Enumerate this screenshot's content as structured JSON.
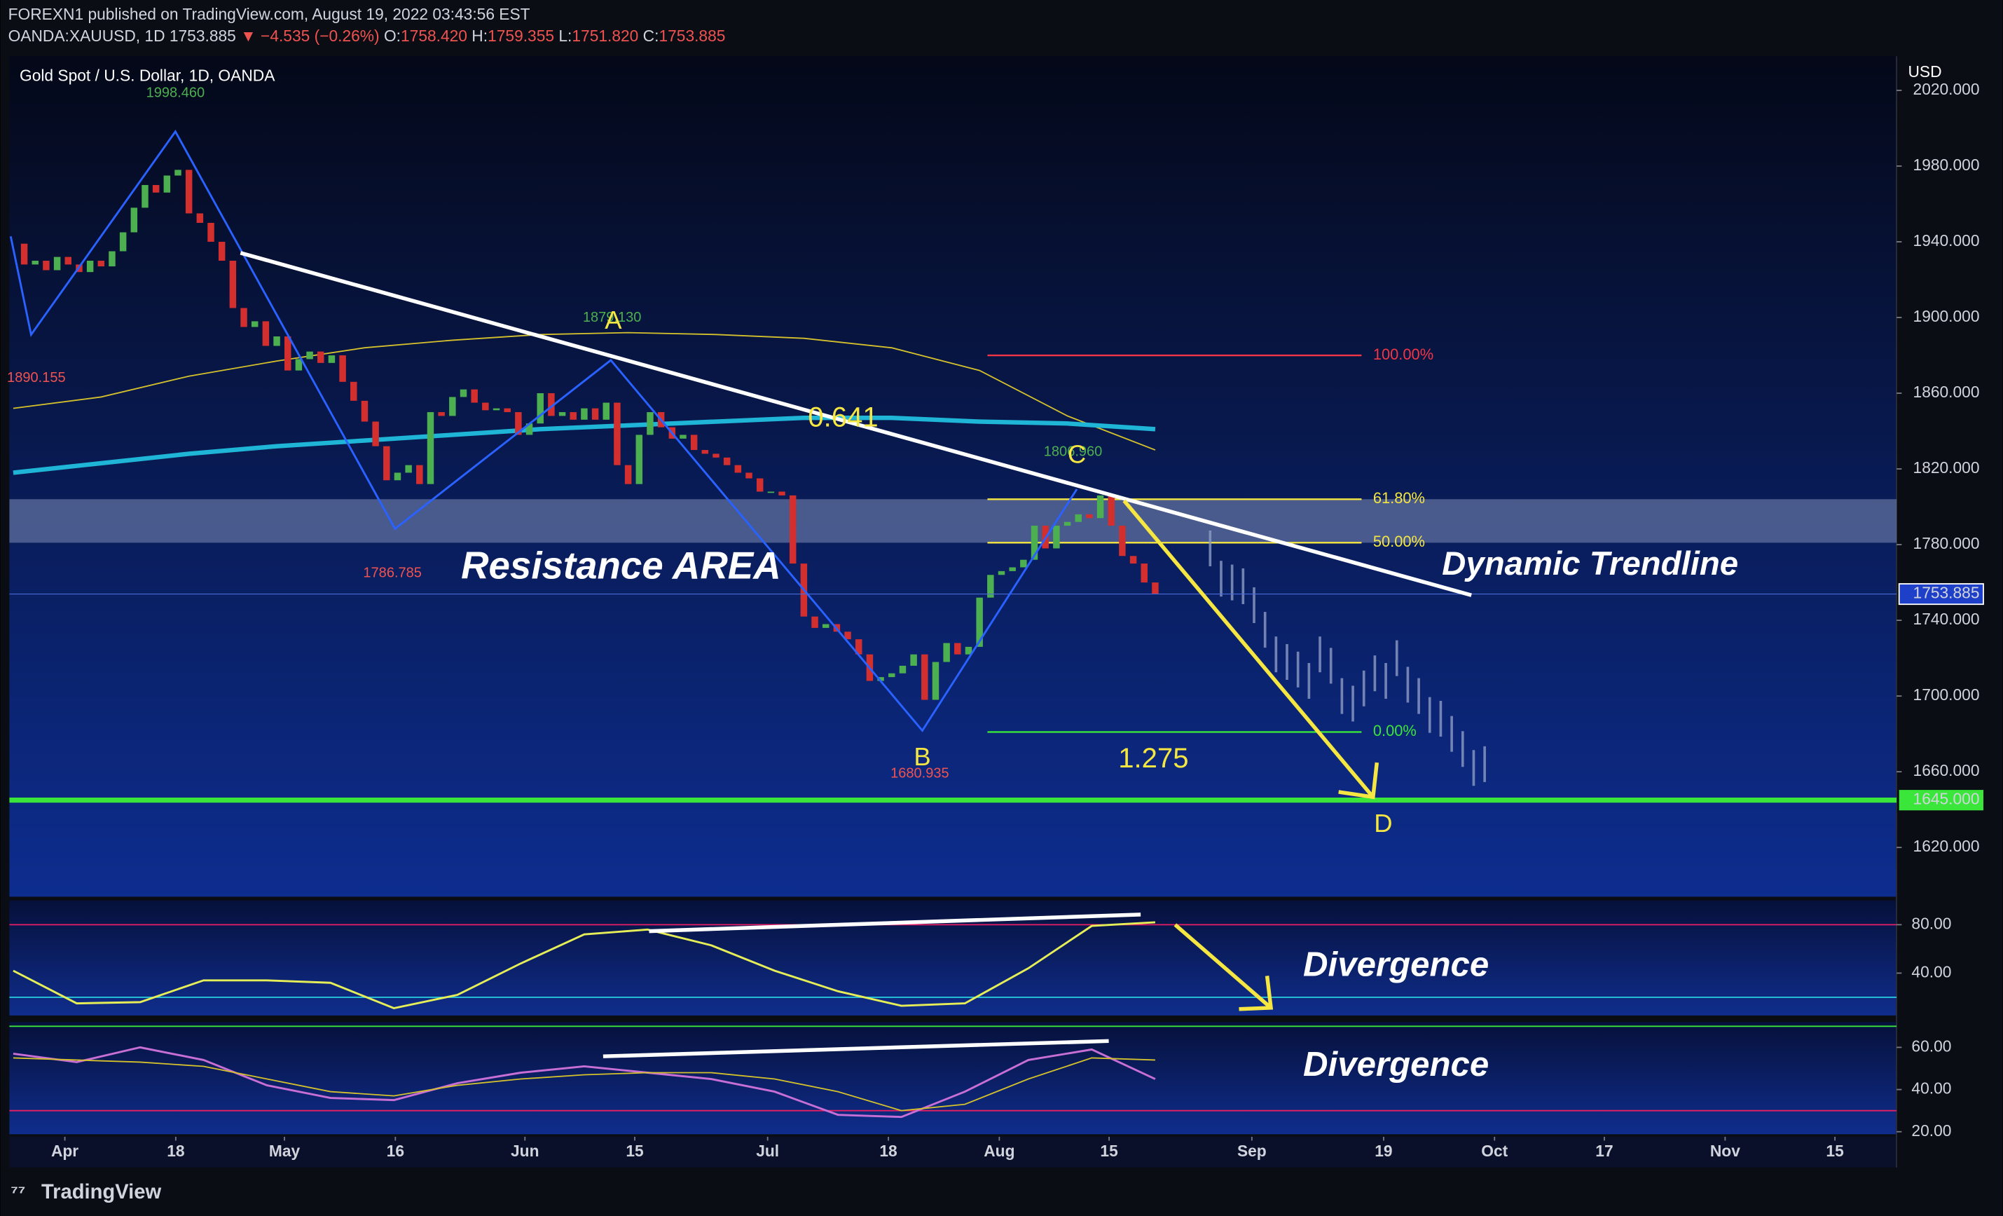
{
  "header": {
    "publisher": "FOREXN1 published on TradingView.com, August 19, 2022 03:43:56 EST",
    "symbol": "OANDA:XAUUSD, 1D",
    "last": "1753.885",
    "arrow": "▼",
    "change": "−4.535 (−0.26%)",
    "open_label": "O:",
    "open": "1758.420",
    "high_label": "H:",
    "high": "1759.355",
    "low_label": "L:",
    "low": "1751.820",
    "close_label": "C:",
    "close": "1753.885"
  },
  "footer": {
    "brand": "TradingView"
  },
  "annotations": {
    "resistance": "Resistance  AREA",
    "trendline": "Dynamic Trendline",
    "divergence_1": "Divergence",
    "divergence_2": "Divergence",
    "point_a": "A",
    "point_b": "B",
    "point_c": "C",
    "point_d": "D",
    "price_high": "1998.460",
    "price_left": "1890.155",
    "price_a": "1879.130",
    "price_low1": "1786.785",
    "price_b": "1680.935",
    "price_c": "1806.960",
    "ratio_1": "0.641",
    "ratio_2": "1.275"
  },
  "chart_data": {
    "type": "candlestick",
    "title": "Gold Spot / U.S. Dollar, 1D, OANDA",
    "currency": "USD",
    "up_color": "#4caf50",
    "down_color": "#d32f2f",
    "values": [
      1939,
      1928,
      1930,
      1925,
      1932,
      1928,
      1924,
      1930,
      1927,
      1935,
      1945,
      1958,
      1970,
      1966,
      1975,
      1978,
      1955,
      1950,
      1940,
      1930,
      1905,
      1895,
      1898,
      1885,
      1890,
      1872,
      1878,
      1882,
      1876,
      1880,
      1866,
      1856,
      1845,
      1832,
      1814,
      1818,
      1822,
      1812,
      1850,
      1848,
      1858,
      1862,
      1855,
      1851,
      1852,
      1850,
      1838,
      1844,
      1860,
      1848,
      1850,
      1846,
      1852,
      1846,
      1855,
      1822,
      1812,
      1838,
      1850,
      1842,
      1836,
      1838,
      1830,
      1828,
      1826,
      1822,
      1818,
      1815,
      1808,
      1808,
      1806,
      1770,
      1742,
      1736,
      1738,
      1734,
      1730,
      1722,
      1708,
      1710,
      1712,
      1716,
      1722,
      1698,
      1718,
      1728,
      1722,
      1726,
      1752,
      1764,
      1766,
      1768,
      1772,
      1790,
      1778,
      1790,
      1792,
      1796,
      1794,
      1806,
      1790,
      1774,
      1770,
      1760,
      1753.885
    ],
    "projection": {
      "color": "#8c9bc4",
      "x": [
        109,
        110,
        111,
        112,
        113,
        114,
        115,
        116,
        117,
        118,
        119,
        120,
        121,
        122,
        123,
        124,
        125,
        126,
        127,
        128,
        129,
        130,
        131,
        132,
        133,
        134
      ],
      "values": [
        1778,
        1762,
        1760,
        1758,
        1748,
        1735,
        1722,
        1718,
        1714,
        1708,
        1722,
        1716,
        1700,
        1696,
        1704,
        1712,
        1708,
        1720,
        1706,
        1700,
        1690,
        1688,
        1680,
        1672,
        1662,
        1664
      ]
    },
    "moving_averages": [
      {
        "color": "#d4c12c",
        "line_width": 1,
        "values": [
          1852,
          1858,
          1869,
          1877,
          1884,
          1888,
          1891,
          1892,
          1891,
          1889,
          1884,
          1872,
          1848,
          1830
        ]
      },
      {
        "color": "#1fb5d6",
        "line_width": 3.5,
        "values": [
          1818,
          1823,
          1828,
          1832,
          1835,
          1838,
          1841,
          1843,
          1845,
          1847,
          1847,
          1845,
          1844,
          1841
        ]
      }
    ],
    "last_price": {
      "value": 1753.885,
      "label": "1753.885"
    },
    "support": {
      "value": 1645,
      "label": "1645.000",
      "color": "#39e639"
    },
    "resistance_zone": [
      1781,
      1804
    ],
    "fib_levels": [
      {
        "value": 1880,
        "label": "100.00%",
        "color": "#f23645"
      },
      {
        "value": 1804,
        "label": "61.80%",
        "color": "#f5e642"
      },
      {
        "value": 1781,
        "label": "50.00%",
        "color": "#f5e642"
      },
      {
        "value": 1681,
        "label": "0.00%",
        "color": "#39e639"
      }
    ],
    "ylim": [
      1594,
      2034
    ],
    "yticks": [
      {
        "value": 1620,
        "label": "1620.000"
      },
      {
        "value": 1660,
        "label": "1660.000"
      },
      {
        "value": 1700,
        "label": "1700.000"
      },
      {
        "value": 1740,
        "label": "1740.000"
      },
      {
        "value": 1780,
        "label": "1780.000"
      },
      {
        "value": 1820,
        "label": "1820.000"
      },
      {
        "value": 1860,
        "label": "1860.000"
      },
      {
        "value": 1900,
        "label": "1900.000"
      },
      {
        "value": 1940,
        "label": "1940.000"
      },
      {
        "value": 1980,
        "label": "1980.000"
      },
      {
        "value": 2020,
        "label": "2020.000"
      }
    ],
    "xticks": [
      {
        "value": 4.7,
        "label": "Apr"
      },
      {
        "value": 14.8,
        "label": "18"
      },
      {
        "value": 24.7,
        "label": "May"
      },
      {
        "value": 34.8,
        "label": "16"
      },
      {
        "value": 46.6,
        "label": "Jun"
      },
      {
        "value": 56.6,
        "label": "15"
      },
      {
        "value": 68.7,
        "label": "Jul"
      },
      {
        "value": 79.7,
        "label": "18"
      },
      {
        "value": 89.8,
        "label": "Aug"
      },
      {
        "value": 99.8,
        "label": "15"
      },
      {
        "value": 112.8,
        "label": "Sep"
      },
      {
        "value": 124.8,
        "label": "19"
      },
      {
        "value": 134.9,
        "label": "Oct"
      },
      {
        "value": 144.9,
        "label": "17"
      },
      {
        "value": 155.9,
        "label": "Nov"
      },
      {
        "value": 165.9,
        "label": "15"
      }
    ],
    "oscillators": [
      {
        "ylim": [
          5,
          100
        ],
        "yticks": [
          {
            "value": 80,
            "label": "80.00"
          },
          {
            "value": 40,
            "label": "40.00"
          }
        ],
        "levels": [
          {
            "value": 80,
            "color": "#e91e63"
          },
          {
            "value": 20,
            "color": "#26c6da"
          }
        ],
        "series": [
          {
            "color": "#e6ee57",
            "values": [
              42,
              15,
              16,
              34,
              34,
              32,
              11,
              22,
              48,
              72,
              76,
              63,
              42,
              25,
              13,
              15,
              44,
              79,
              82
            ]
          }
        ]
      },
      {
        "ylim": [
          18.8,
          72.1
        ],
        "yticks": [
          {
            "value": 60,
            "label": "60.00"
          },
          {
            "value": 40,
            "label": "40.00"
          },
          {
            "value": 20,
            "label": "20.00"
          }
        ],
        "levels": [
          {
            "value": 70,
            "color": "#39e639"
          },
          {
            "value": 30,
            "color": "#e91e63"
          }
        ],
        "series": [
          {
            "color": "#c86fd6",
            "values": [
              57,
              53,
              60,
              54,
              42,
              36,
              35,
              43,
              48,
              51,
              48,
              45,
              39,
              28,
              27,
              39,
              54,
              59,
              45
            ]
          },
          {
            "color": "#d4c12c",
            "values": [
              55,
              54,
              53,
              51,
              45,
              39,
              37,
              42,
              45,
              47,
              48,
              48,
              45,
              39,
              30,
              33,
              45,
              55,
              54
            ]
          }
        ]
      }
    ]
  }
}
